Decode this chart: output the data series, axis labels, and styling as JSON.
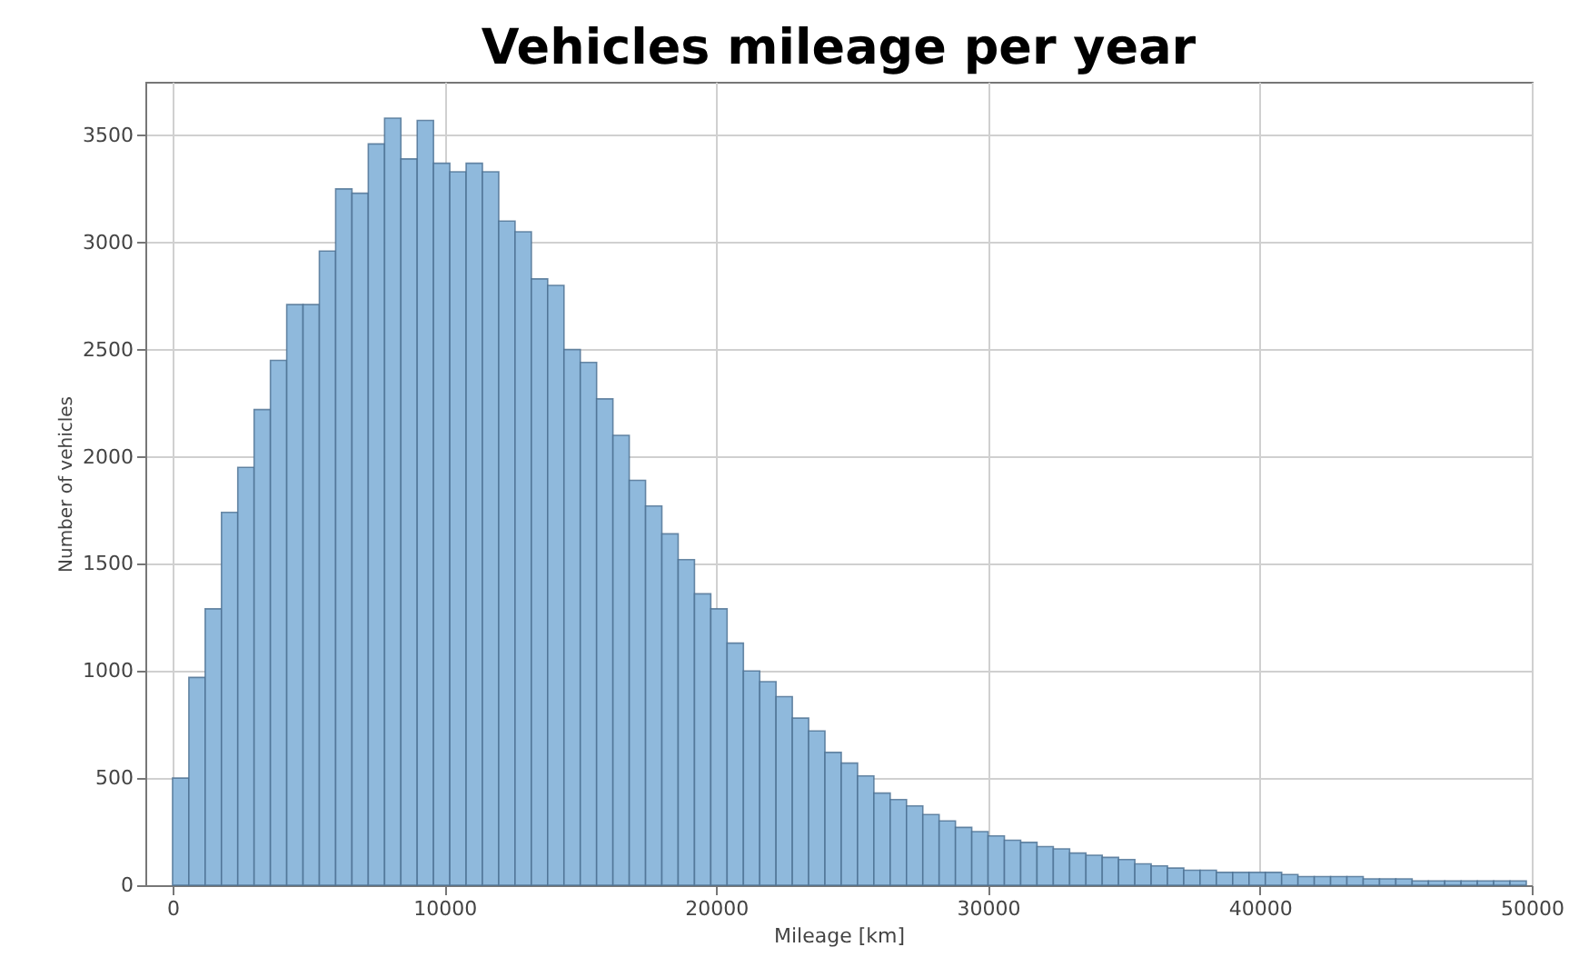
{
  "chart_data": {
    "type": "histogram",
    "title": "Vehicles mileage per year",
    "xlabel": "Mileage [km]",
    "ylabel": "Number of vehicles",
    "bins": [
      0,
      600,
      1200,
      1800,
      2400,
      3000,
      3600,
      4200,
      4800,
      5400,
      6000,
      6600,
      7200,
      7800,
      8400,
      9000,
      9600,
      10200,
      10800,
      11400,
      12000,
      12600,
      13200,
      13800,
      14400,
      15000,
      15600,
      16200,
      16800,
      17400,
      18000,
      18600,
      19200,
      19800,
      20400,
      21000,
      21600,
      22200,
      22800,
      23400,
      24000,
      24600,
      25200,
      25800,
      26400,
      27000,
      27600,
      28200,
      28800,
      29400,
      30000,
      30600,
      31200,
      31800,
      32400,
      33000,
      33600,
      34200,
      34800,
      35400,
      36000,
      36600,
      37200,
      37800,
      38400,
      39000,
      39600,
      40200,
      40800,
      41400,
      42000,
      42600,
      43200,
      43800,
      44400,
      45000,
      45600,
      46200,
      46800,
      47400,
      48000,
      48600,
      49200,
      49800
    ],
    "values": [
      500,
      970,
      1290,
      1740,
      1950,
      2220,
      2450,
      2710,
      2710,
      2960,
      3250,
      3230,
      3460,
      3580,
      3390,
      3570,
      3370,
      3330,
      3370,
      3330,
      3100,
      3050,
      2830,
      2800,
      2500,
      2440,
      2270,
      2100,
      1890,
      1770,
      1640,
      1520,
      1360,
      1290,
      1130,
      1000,
      950,
      880,
      780,
      720,
      620,
      570,
      510,
      430,
      400,
      370,
      330,
      300,
      270,
      250,
      230,
      210,
      200,
      180,
      170,
      150,
      140,
      130,
      120,
      100,
      90,
      80,
      70,
      70,
      60,
      60,
      60,
      60,
      50,
      40,
      40,
      40,
      40,
      30,
      30,
      30,
      20,
      20,
      20,
      20,
      20,
      20,
      20
    ],
    "color": "#8fb9dc",
    "xlim": [
      -1000,
      50000
    ],
    "xticks": [
      0,
      10000,
      20000,
      30000,
      40000,
      50000
    ],
    "ylim": [
      0,
      3750
    ],
    "yticks": [
      0,
      500,
      1000,
      1500,
      2000,
      2500,
      3000,
      3500
    ],
    "grid": true
  }
}
